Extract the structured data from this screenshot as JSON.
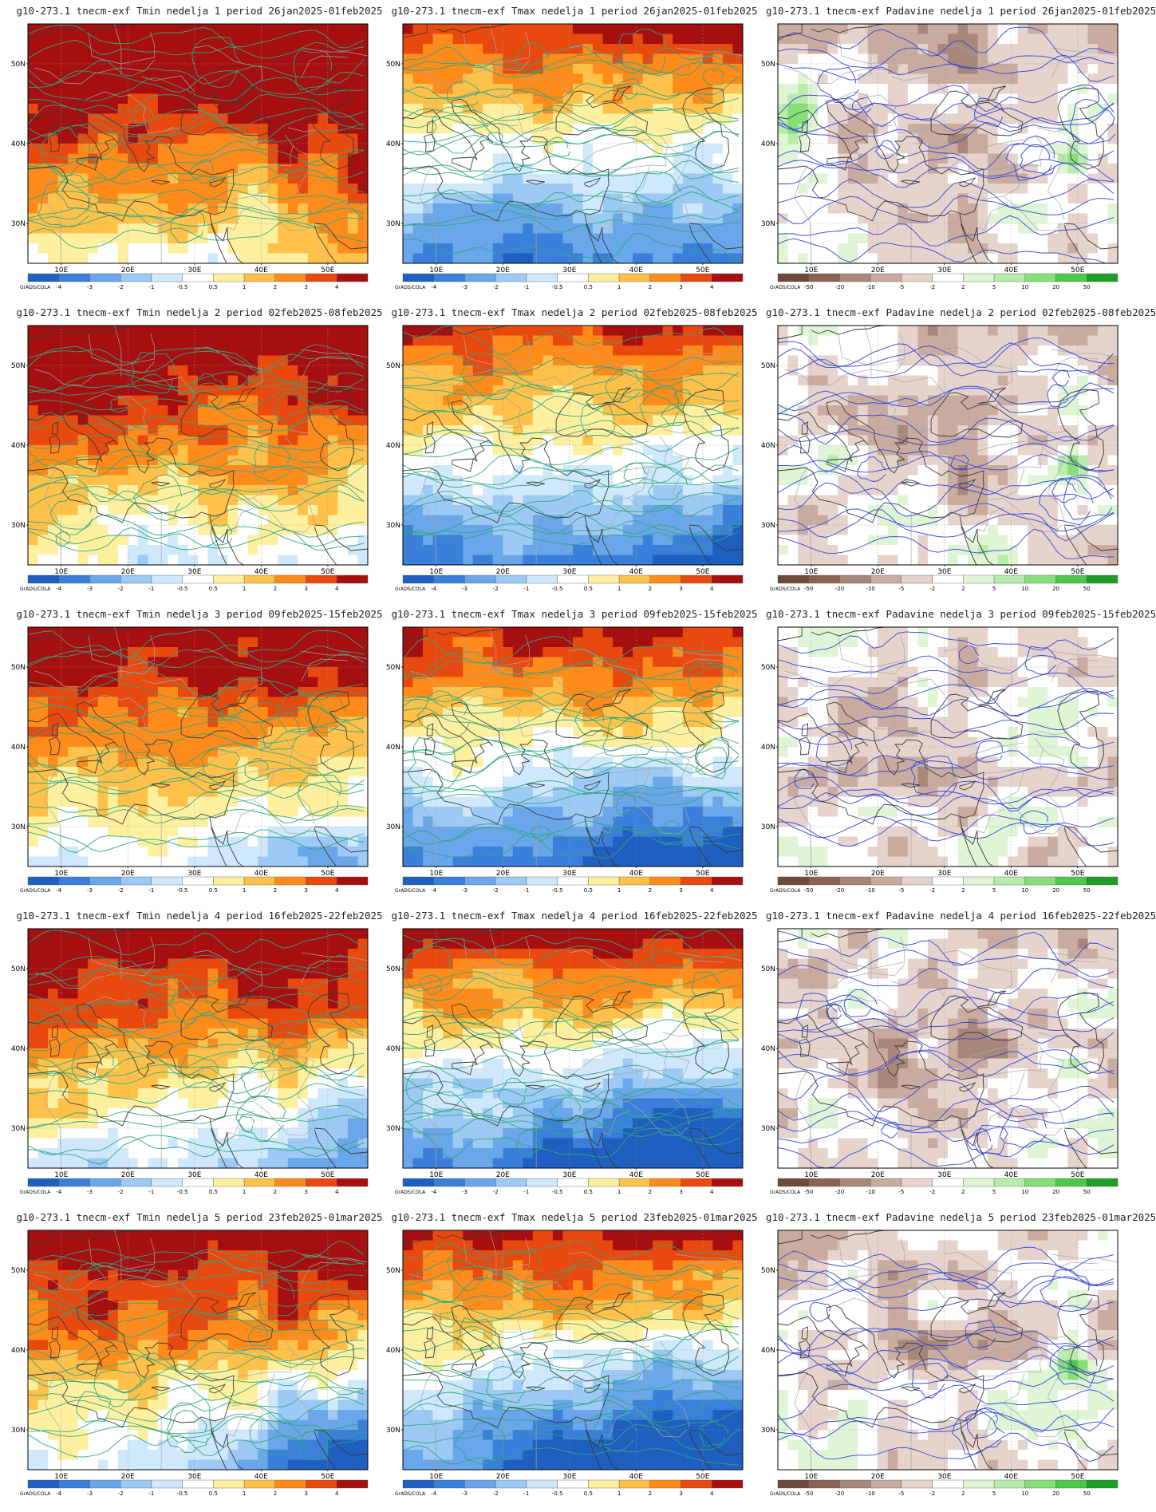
{
  "panels": [
    {
      "title": "g10-273.1 tnecm-exf Tmin nedelja 1 period 26jan2025-01feb2025",
      "var": "tmin",
      "week": 1,
      "scene": 0
    },
    {
      "title": "g10-273.1 tnecm-exf Tmax nedelja 1 period 26jan2025-01feb2025",
      "var": "tmax",
      "week": 1,
      "scene": 1
    },
    {
      "title": "g10-273.1 tnecm-exf Padavine nedelja 1 period 26jan2025-01feb2025",
      "var": "pad",
      "week": 1,
      "scene": 2
    },
    {
      "title": "g10-273.1 tnecm-exf Tmin nedelja 2 period 02feb2025-08feb2025",
      "var": "tmin",
      "week": 2,
      "scene": 3
    },
    {
      "title": "g10-273.1 tnecm-exf Tmax nedelja 2 period 02feb2025-08feb2025",
      "var": "tmax",
      "week": 2,
      "scene": 4
    },
    {
      "title": "g10-273.1 tnecm-exf Padavine nedelja 2 period 02feb2025-08feb2025",
      "var": "pad",
      "week": 2,
      "scene": 5
    },
    {
      "title": "g10-273.1 tnecm-exf Tmin nedelja 3 period 09feb2025-15feb2025",
      "var": "tmin",
      "week": 3,
      "scene": 6
    },
    {
      "title": "g10-273.1 tnecm-exf Tmax nedelja 3 period 09feb2025-15feb2025",
      "var": "tmax",
      "week": 3,
      "scene": 7
    },
    {
      "title": "g10-273.1 tnecm-exf Padavine nedelja 3 period 09feb2025-15feb2025",
      "var": "pad",
      "week": 3,
      "scene": 8
    },
    {
      "title": "g10-273.1 tnecm-exf Tmin nedelja 4 period 16feb2025-22feb2025",
      "var": "tmin",
      "week": 4,
      "scene": 9
    },
    {
      "title": "g10-273.1 tnecm-exf Tmax nedelja 4 period 16feb2025-22feb2025",
      "var": "tmax",
      "week": 4,
      "scene": 10
    },
    {
      "title": "g10-273.1 tnecm-exf Padavine nedelja 4 period 16feb2025-22feb2025",
      "var": "pad",
      "week": 4,
      "scene": 11
    },
    {
      "title": "g10-273.1 tnecm-exf Tmin nedelja 5 period 23feb2025-01mar2025",
      "var": "tmin",
      "week": 5,
      "scene": 12
    },
    {
      "title": "g10-273.1 tnecm-exf Tmax nedelja 5 period 23feb2025-01mar2025",
      "var": "tmax",
      "week": 5,
      "scene": 13
    },
    {
      "title": "g10-273.1 tnecm-exf Padavine nedelja 5 period 23feb2025-01mar2025",
      "var": "pad",
      "week": 5,
      "scene": 14
    }
  ],
  "lat_labels": [
    "50N",
    "40N",
    "30N"
  ],
  "lon_labels": [
    "10E",
    "20E",
    "30E",
    "40E",
    "50E"
  ],
  "colorbar_credit": "GrADS/COLA",
  "temp_scale": {
    "labels": [
      "-4",
      "-3",
      "-2",
      "-1",
      "-0.5",
      "0.5",
      "1",
      "2",
      "3",
      "4"
    ],
    "colors": [
      "#1f5fbf",
      "#3a7fd9",
      "#6aa6ea",
      "#9ccaf4",
      "#d0e8fb",
      "#ffffff",
      "#fff0a0",
      "#ffc14a",
      "#ff8c1a",
      "#e8490f",
      "#a50f0f"
    ]
  },
  "precip_scale": {
    "labels": [
      "-50",
      "-20",
      "-10",
      "-5",
      "-2",
      "2",
      "5",
      "10",
      "20",
      "50"
    ],
    "colors": [
      "#6e4a3c",
      "#8c6352",
      "#a8867a",
      "#c9ab9f",
      "#e6d3cc",
      "#ffffff",
      "#dff5d6",
      "#b7ecaa",
      "#86df79",
      "#4cc94a",
      "#1e9e26"
    ]
  }
}
